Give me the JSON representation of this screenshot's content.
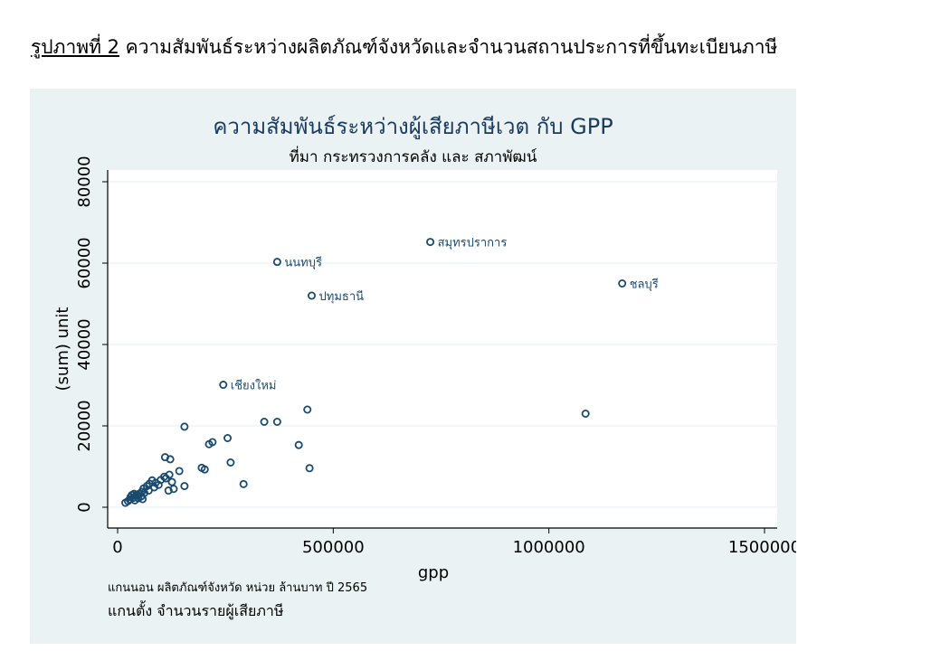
{
  "caption": {
    "label": "รูปภาพที่ 2",
    "text": " ความสัมพันธ์ระหว่างผลิตภัณฑ์จังหวัดและจำนวนสถานประการที่ขึ้นทะเบียนภาษี"
  },
  "notes": {
    "x_axis_note": "แกนนอน ผลิตภัณฑ์จังหวัด หน่วย ล้านบาท ปี 2565",
    "y_axis_note": "แกนตั้ง จำนวนรายผู้เสียภาษี"
  },
  "colors": {
    "panel_bg": "#eaf2f3",
    "plot_bg": "#ffffff",
    "marker": "#1a4a6e",
    "title": "#1b3a5c"
  },
  "chart_data": {
    "type": "scatter",
    "title": "ความสัมพันธ์ระหว่างผู้เสียภาษีเวต กับ GPP",
    "subtitle": "ที่มา กระทรวงการคลัง และ สภาพัฒน์",
    "xlabel": "gpp",
    "ylabel": "(sum) unit",
    "xlim": [
      0,
      1500000
    ],
    "ylim": [
      0,
      80000
    ],
    "xticks": [
      0,
      500000,
      1000000,
      1500000
    ],
    "xtick_labels": [
      "0",
      "500000",
      "1000000",
      "1500000"
    ],
    "yticks": [
      0,
      20000,
      40000,
      60000,
      80000
    ],
    "ytick_labels": [
      "0",
      "20000",
      "40000",
      "60000",
      "80000"
    ],
    "grid": true,
    "legend": "none",
    "points": [
      {
        "x": 725000,
        "y": 65200,
        "label": "สมุทรปราการ"
      },
      {
        "x": 370000,
        "y": 60300,
        "label": "นนทบุรี"
      },
      {
        "x": 1170000,
        "y": 55000,
        "label": "ชลบุรี"
      },
      {
        "x": 450000,
        "y": 52000,
        "label": "ปทุมธานี"
      },
      {
        "x": 245000,
        "y": 30100,
        "label": "เชียงใหม่"
      },
      {
        "x": 1085000,
        "y": 23000
      },
      {
        "x": 440000,
        "y": 24000
      },
      {
        "x": 340000,
        "y": 21000
      },
      {
        "x": 370000,
        "y": 21000
      },
      {
        "x": 155000,
        "y": 19800
      },
      {
        "x": 255000,
        "y": 17000
      },
      {
        "x": 420000,
        "y": 15300
      },
      {
        "x": 220000,
        "y": 16000
      },
      {
        "x": 212000,
        "y": 15500
      },
      {
        "x": 110000,
        "y": 12300
      },
      {
        "x": 122000,
        "y": 11800
      },
      {
        "x": 262000,
        "y": 11000
      },
      {
        "x": 195000,
        "y": 9700
      },
      {
        "x": 202000,
        "y": 9300
      },
      {
        "x": 445000,
        "y": 9600
      },
      {
        "x": 143000,
        "y": 8900
      },
      {
        "x": 120000,
        "y": 8000
      },
      {
        "x": 108000,
        "y": 7500
      },
      {
        "x": 112000,
        "y": 7100
      },
      {
        "x": 100000,
        "y": 6700
      },
      {
        "x": 80000,
        "y": 6600
      },
      {
        "x": 88000,
        "y": 6000
      },
      {
        "x": 126000,
        "y": 6200
      },
      {
        "x": 74000,
        "y": 5800
      },
      {
        "x": 95000,
        "y": 5500
      },
      {
        "x": 68000,
        "y": 5200
      },
      {
        "x": 155000,
        "y": 5200
      },
      {
        "x": 85000,
        "y": 4900
      },
      {
        "x": 60000,
        "y": 4600
      },
      {
        "x": 292000,
        "y": 5700
      },
      {
        "x": 130000,
        "y": 4500
      },
      {
        "x": 118000,
        "y": 4100
      },
      {
        "x": 72000,
        "y": 4100
      },
      {
        "x": 56000,
        "y": 3800
      },
      {
        "x": 62000,
        "y": 3500
      },
      {
        "x": 50000,
        "y": 3300
      },
      {
        "x": 45000,
        "y": 3100
      },
      {
        "x": 38000,
        "y": 3300
      },
      {
        "x": 33000,
        "y": 3000
      },
      {
        "x": 42000,
        "y": 2800
      },
      {
        "x": 55000,
        "y": 2700
      },
      {
        "x": 30000,
        "y": 2500
      },
      {
        "x": 36000,
        "y": 2300
      },
      {
        "x": 48000,
        "y": 2200
      },
      {
        "x": 58000,
        "y": 2000
      },
      {
        "x": 28000,
        "y": 1900
      },
      {
        "x": 40000,
        "y": 1700
      },
      {
        "x": 24000,
        "y": 1500
      },
      {
        "x": 18000,
        "y": 1100
      }
    ]
  }
}
